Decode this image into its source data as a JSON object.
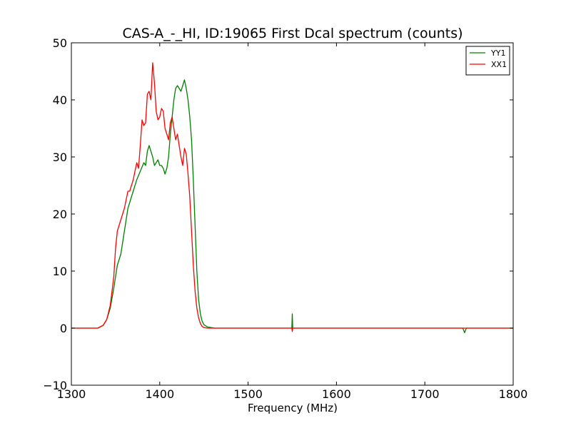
{
  "chart_data": {
    "type": "line",
    "title": "CAS-A_-_HI, ID:19065 First Dcal spectrum (counts)",
    "xlabel": "Frequency (MHz)",
    "ylabel": "",
    "xlim": [
      1300,
      1800
    ],
    "ylim": [
      -10,
      50
    ],
    "xticks": [
      1300,
      1400,
      1500,
      1600,
      1700,
      1800
    ],
    "yticks": [
      -10,
      0,
      10,
      20,
      30,
      40,
      50
    ],
    "xtick_labels": [
      "1300",
      "1400",
      "1500",
      "1600",
      "1700",
      "1800"
    ],
    "ytick_labels": [
      "−10",
      "0",
      "10",
      "20",
      "30",
      "40",
      "50"
    ],
    "grid": false,
    "legend_position": "top-right",
    "series": [
      {
        "name": "YY1",
        "color": "#008000",
        "x": [
          1300,
          1330,
          1336,
          1340,
          1344,
          1348,
          1352,
          1356,
          1360,
          1364,
          1366,
          1370,
          1374,
          1378,
          1382,
          1384,
          1386,
          1388,
          1390,
          1392,
          1394,
          1396,
          1398,
          1400,
          1402,
          1404,
          1406,
          1408,
          1410,
          1412,
          1414,
          1416,
          1418,
          1420,
          1422,
          1424,
          1426,
          1428,
          1430,
          1432,
          1434,
          1436,
          1438,
          1440,
          1442,
          1444,
          1446,
          1448,
          1450,
          1454,
          1458,
          1462,
          1466,
          1470,
          1480,
          1500,
          1549.5,
          1550,
          1550.5,
          1551,
          1600,
          1700,
          1743,
          1745,
          1747,
          1749,
          1800
        ],
        "y": [
          0,
          0,
          0.5,
          1.5,
          3.5,
          7,
          11,
          13,
          17,
          21,
          22,
          24,
          26,
          27.5,
          29,
          28.5,
          31,
          32,
          31,
          30,
          28.5,
          29,
          29.5,
          28.5,
          28.5,
          28,
          27,
          28,
          30,
          34,
          37,
          40,
          42,
          42.5,
          42,
          41.5,
          42.5,
          43.5,
          42,
          40,
          37,
          33,
          26,
          18,
          10,
          5,
          2.5,
          1.2,
          0.6,
          0.2,
          0.1,
          0,
          0,
          0,
          0,
          0,
          0,
          2.5,
          0,
          0,
          0,
          0,
          0,
          -0.8,
          0,
          0,
          0
        ]
      },
      {
        "name": "XX1",
        "color": "#ff0000",
        "x": [
          1300,
          1330,
          1336,
          1340,
          1344,
          1348,
          1350,
          1352,
          1356,
          1360,
          1364,
          1366,
          1370,
          1374,
          1376,
          1378,
          1380,
          1382,
          1384,
          1386,
          1388,
          1390,
          1392,
          1394,
          1396,
          1398,
          1400,
          1402,
          1404,
          1406,
          1408,
          1410,
          1412,
          1414,
          1416,
          1418,
          1420,
          1422,
          1424,
          1426,
          1428,
          1430,
          1432,
          1434,
          1436,
          1438,
          1440,
          1442,
          1444,
          1446,
          1448,
          1450,
          1454,
          1458,
          1462,
          1466,
          1470,
          1480,
          1500,
          1549.5,
          1550,
          1550.5,
          1551,
          1600,
          1700,
          1800
        ],
        "y": [
          0,
          0,
          0.5,
          1.5,
          4,
          9,
          14,
          17,
          19,
          21,
          24,
          24,
          26,
          29,
          28,
          32,
          36.5,
          35.5,
          36,
          41,
          41.5,
          40,
          46.5,
          43,
          38,
          36.5,
          37,
          38.5,
          38,
          35,
          34,
          33,
          36,
          37,
          35,
          33,
          34,
          32,
          30,
          28.5,
          31.5,
          30.5,
          27,
          23,
          17,
          11,
          6.5,
          3.5,
          1.8,
          0.8,
          0.3,
          0.1,
          0,
          0,
          0,
          0,
          0,
          0,
          0,
          0,
          -0.6,
          0,
          0,
          0,
          0,
          0
        ]
      }
    ]
  }
}
